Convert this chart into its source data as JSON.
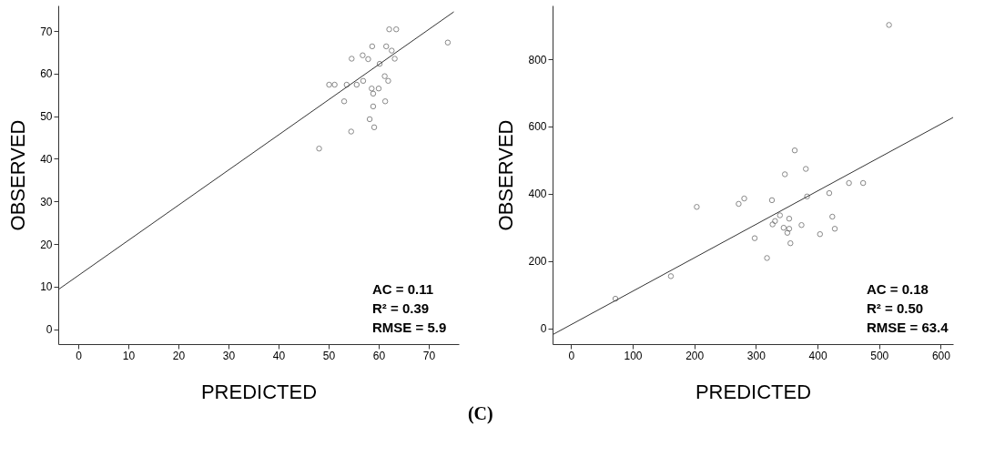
{
  "chart_data": [
    {
      "type": "scatter",
      "xlabel": "PREDICTED",
      "ylabel": "OBSERVED",
      "xlim": [
        -4,
        76
      ],
      "ylim": [
        -3.5,
        76
      ],
      "xticks": [
        0,
        10,
        20,
        30,
        40,
        50,
        60,
        70
      ],
      "yticks": [
        0,
        10,
        20,
        30,
        40,
        50,
        60,
        70
      ],
      "grid": false,
      "marker": "circle",
      "series": [
        {
          "color": "#555555",
          "x": [
            62.1,
            63.5,
            58.7,
            61.5,
            62.6,
            54.6,
            56.8,
            57.9,
            63.2,
            60.2,
            61.2,
            61.9,
            56.9,
            50.1,
            51.2,
            53.6,
            55.6,
            58.6,
            60.0,
            58.9,
            53.1,
            61.3,
            58.9,
            58.2,
            59.1,
            54.5,
            48.1,
            73.8
          ],
          "values": [
            70.4,
            70.4,
            66.4,
            66.4,
            65.4,
            63.5,
            64.3,
            63.4,
            63.5,
            62.3,
            59.4,
            58.3,
            58.3,
            57.4,
            57.4,
            57.4,
            57.4,
            56.5,
            56.5,
            55.3,
            53.5,
            53.5,
            52.3,
            49.3,
            47.4,
            46.4,
            42.4,
            67.3
          ]
        },
        {
          "type": "line",
          "marker": "none",
          "color": "#333333",
          "x": [
            -4,
            75
          ],
          "values": [
            9.3,
            74.5
          ]
        }
      ],
      "annotations": [
        "AC = 0.11",
        "R² = 0.39",
        "RMSE = 5.9"
      ]
    },
    {
      "type": "scatter",
      "xlabel": "PREDICTED",
      "ylabel": "OBSERVED",
      "xlim": [
        -30,
        620
      ],
      "ylim": [
        -47,
        960
      ],
      "xticks": [
        0,
        100,
        200,
        300,
        400,
        500,
        600
      ],
      "yticks": [
        0,
        200,
        400,
        600,
        800
      ],
      "grid": false,
      "marker": "circle",
      "series": [
        {
          "color": "#555555",
          "x": [
            381,
            347,
            451,
            474,
            419,
            383,
            281,
            272,
            326,
            204,
            339,
            424,
            354,
            331,
            327,
            374,
            345,
            354,
            428,
            351,
            404,
            298,
            356,
            318,
            162,
            516,
            363,
            72
          ],
          "values": [
            474,
            458,
            432,
            432,
            402,
            392,
            386,
            370,
            381,
            361,
            336,
            332,
            326,
            319,
            309,
            307,
            299,
            296,
            296,
            284,
            280,
            268,
            253,
            209,
            155,
            902,
            529,
            88
          ]
        },
        {
          "type": "line",
          "marker": "none",
          "color": "#333333",
          "x": [
            -30,
            620
          ],
          "values": [
            -19,
            627
          ]
        }
      ],
      "annotations": [
        "AC = 0.18",
        "R² = 0.50",
        "RMSE = 63.4",
        "(C)"
      ]
    }
  ]
}
